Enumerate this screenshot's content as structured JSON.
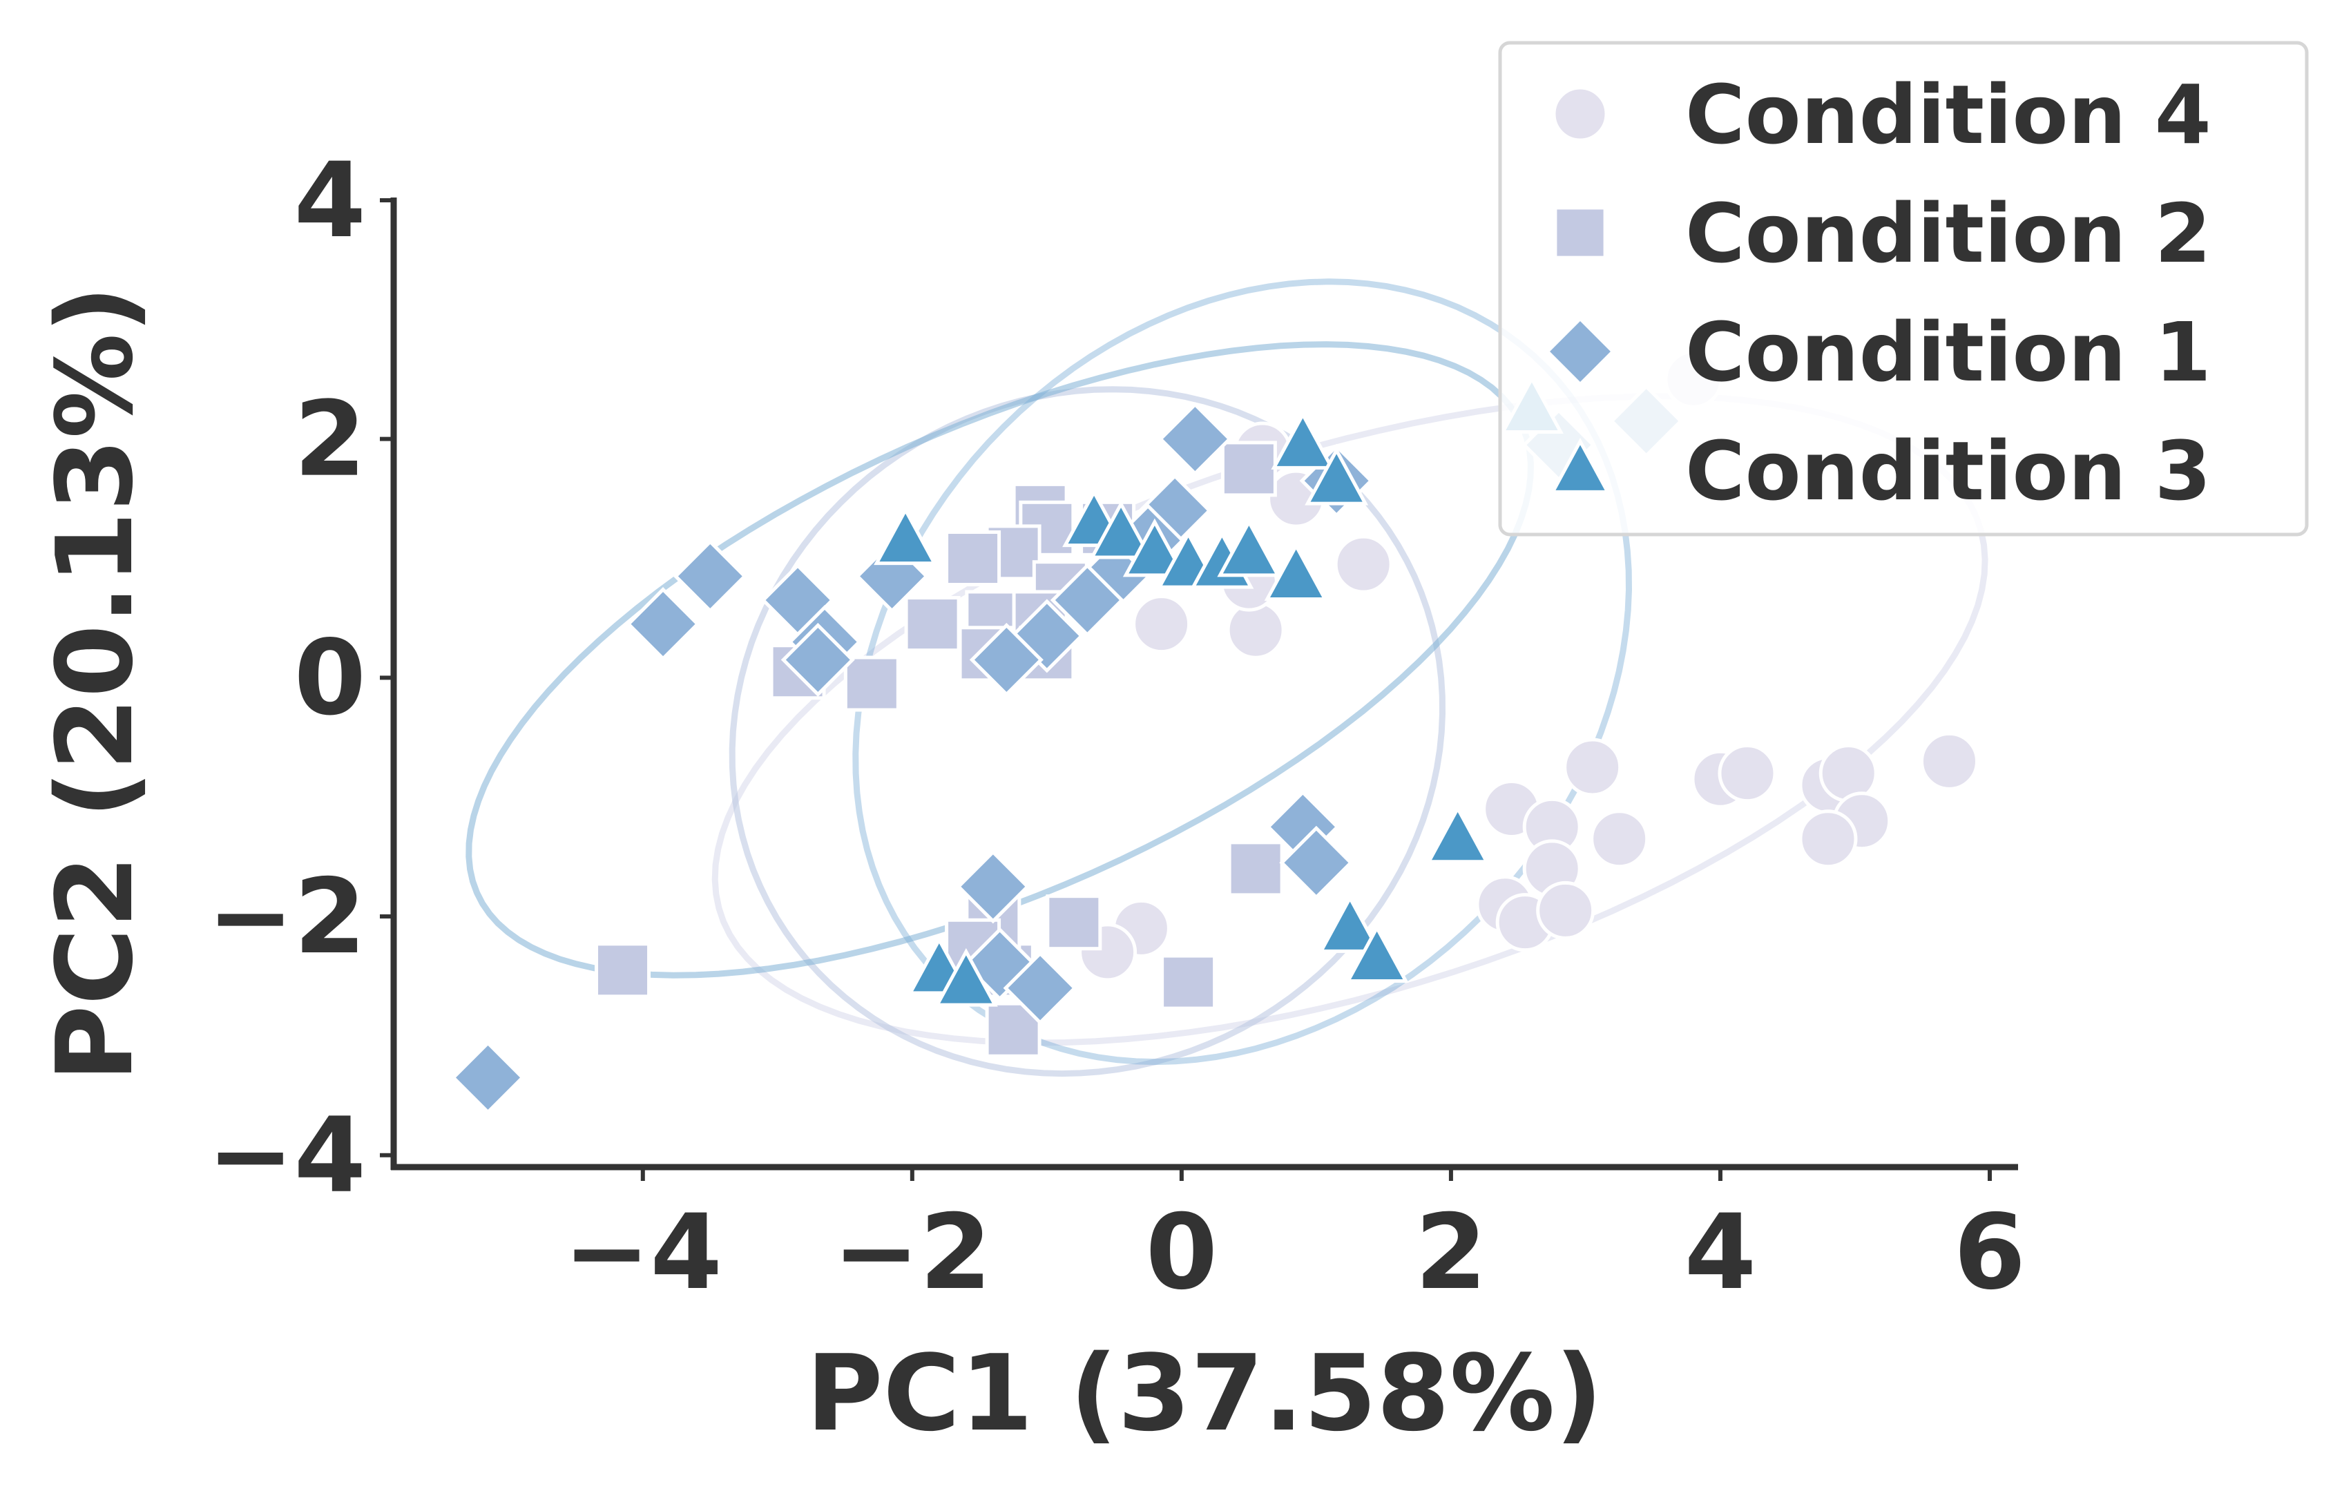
{
  "chart_data": {
    "type": "scatter",
    "xlabel": "PC1 (37.58%)",
    "ylabel": "PC2 (20.13%)",
    "xlim": [
      -5.85,
      6.2
    ],
    "ylim": [
      -4.1,
      4.0
    ],
    "xticks": [
      -4,
      -2,
      0,
      2,
      4,
      6
    ],
    "yticks": [
      -4,
      -2,
      0,
      2,
      4
    ],
    "grid": false,
    "legend_position": "top-right",
    "series": [
      {
        "name": "Condition 4",
        "marker": "circle",
        "color": "#e3e1ee",
        "points": [
          [
            0.6,
            1.9
          ],
          [
            0.85,
            1.5
          ],
          [
            1.35,
            0.95
          ],
          [
            -0.15,
            0.45
          ],
          [
            0.55,
            0.4
          ],
          [
            0.5,
            0.8
          ],
          [
            3.05,
            -0.75
          ],
          [
            4.0,
            -0.85
          ],
          [
            4.2,
            -0.8
          ],
          [
            4.8,
            -0.9
          ],
          [
            4.95,
            -0.8
          ],
          [
            5.05,
            -1.2
          ],
          [
            4.8,
            -1.35
          ],
          [
            5.7,
            -0.7
          ],
          [
            2.45,
            -1.1
          ],
          [
            2.75,
            -1.25
          ],
          [
            3.25,
            -1.35
          ],
          [
            2.75,
            -1.6
          ],
          [
            2.4,
            -1.9
          ],
          [
            2.55,
            -2.05
          ],
          [
            2.85,
            -1.95
          ],
          [
            -0.3,
            -2.1
          ],
          [
            -0.55,
            -2.3
          ],
          [
            3.8,
            2.5
          ]
        ],
        "ellipse": {
          "cx": 1.25,
          "cy": -0.35,
          "rx": 4.95,
          "ry": 2.25,
          "angle_deg": 20,
          "opacity": 0.45
        }
      },
      {
        "name": "Condition 2",
        "marker": "square",
        "color": "#c3c9e2",
        "points": [
          [
            -1.05,
            1.4
          ],
          [
            -1.0,
            1.25
          ],
          [
            -0.55,
            1.25
          ],
          [
            -1.25,
            1.05
          ],
          [
            -1.55,
            1.0
          ],
          [
            -0.9,
            0.75
          ],
          [
            -1.85,
            0.45
          ],
          [
            -1.4,
            0.5
          ],
          [
            -1.05,
            0.5
          ],
          [
            -1.45,
            0.2
          ],
          [
            -1.0,
            0.2
          ],
          [
            -2.85,
            0.05
          ],
          [
            -2.3,
            -0.05
          ],
          [
            0.5,
            1.75
          ],
          [
            -4.15,
            -2.45
          ],
          [
            0.05,
            -2.55
          ],
          [
            -1.3,
            -2.45
          ],
          [
            -0.8,
            -2.05
          ],
          [
            -1.4,
            -2.05
          ],
          [
            -1.25,
            -2.95
          ],
          [
            0.55,
            -1.6
          ],
          [
            -1.55,
            -2.25
          ]
        ],
        "ellipse": {
          "cx": -0.7,
          "cy": -0.45,
          "rx": 2.6,
          "ry": 2.9,
          "angle_deg": -20,
          "opacity": 0.55
        }
      },
      {
        "name": "Condition 1",
        "marker": "diamond",
        "color": "#8fb2d8",
        "points": [
          [
            0.1,
            2.0
          ],
          [
            1.15,
            1.65
          ],
          [
            -3.5,
            0.85
          ],
          [
            -3.85,
            0.45
          ],
          [
            -2.85,
            0.65
          ],
          [
            -2.65,
            0.3
          ],
          [
            -2.7,
            0.15
          ],
          [
            -2.15,
            0.85
          ],
          [
            -0.05,
            1.4
          ],
          [
            -0.25,
            1.15
          ],
          [
            -0.5,
            0.85
          ],
          [
            -0.7,
            0.65
          ],
          [
            -1.0,
            0.35
          ],
          [
            -1.3,
            0.15
          ],
          [
            2.8,
            1.95
          ],
          [
            3.45,
            2.15
          ],
          [
            0.9,
            -1.25
          ],
          [
            1.0,
            -1.55
          ],
          [
            -1.4,
            -1.75
          ],
          [
            -1.35,
            -2.4
          ],
          [
            -1.05,
            -2.6
          ],
          [
            -5.15,
            -3.35
          ]
        ],
        "ellipse": {
          "cx": -1.35,
          "cy": 0.15,
          "rx": 4.35,
          "ry": 1.9,
          "angle_deg": 28,
          "opacity": 0.55
        }
      },
      {
        "name": "Condition 3",
        "marker": "triangle",
        "color": "#4b98c7",
        "points": [
          [
            -2.05,
            1.15
          ],
          [
            -0.65,
            1.3
          ],
          [
            -0.45,
            1.2
          ],
          [
            -0.2,
            1.05
          ],
          [
            0.05,
            0.95
          ],
          [
            0.3,
            0.95
          ],
          [
            0.5,
            1.05
          ],
          [
            0.85,
            0.85
          ],
          [
            0.9,
            1.95
          ],
          [
            1.15,
            1.65
          ],
          [
            2.6,
            2.25
          ],
          [
            2.05,
            -1.35
          ],
          [
            1.25,
            -2.1
          ],
          [
            1.45,
            -2.35
          ],
          [
            -1.8,
            -2.45
          ],
          [
            -1.6,
            -2.55
          ]
        ],
        "ellipse": {
          "cx": 0.45,
          "cy": 0.05,
          "rx": 3.45,
          "ry": 2.65,
          "angle_deg": 60,
          "opacity": 0.45
        }
      }
    ]
  }
}
